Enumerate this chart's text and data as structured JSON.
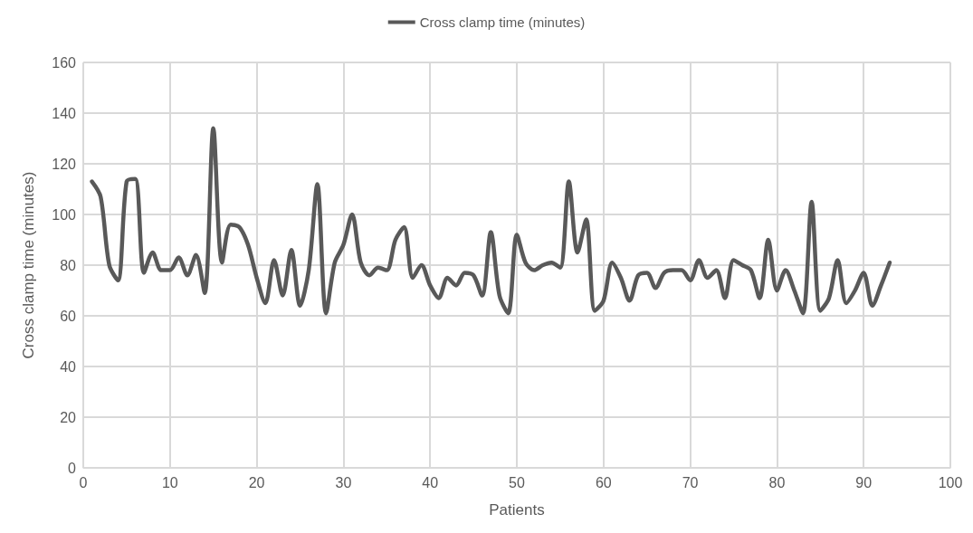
{
  "chart_data": {
    "type": "line",
    "xlabel": "Patients",
    "ylabel": "Cross clamp time (minutes)",
    "x": [
      1,
      2,
      3,
      4,
      5,
      6,
      7,
      8,
      9,
      10,
      11,
      12,
      13,
      14,
      15,
      16,
      17,
      18,
      19,
      20,
      21,
      22,
      23,
      24,
      25,
      26,
      27,
      28,
      29,
      30,
      31,
      32,
      33,
      34,
      35,
      36,
      37,
      38,
      39,
      40,
      41,
      42,
      43,
      44,
      45,
      46,
      47,
      48,
      49,
      50,
      51,
      52,
      53,
      54,
      55,
      56,
      57,
      58,
      59,
      60,
      61,
      62,
      63,
      64,
      65,
      66,
      67,
      68,
      69,
      70,
      71,
      72,
      73,
      74,
      75,
      76,
      77,
      78,
      79,
      80,
      81,
      82,
      83,
      84,
      85,
      86,
      87,
      88,
      89,
      90,
      91,
      92,
      93
    ],
    "series": [
      {
        "name": "Cross clamp time (minutes)",
        "color": "#595959",
        "values": [
          113,
          107,
          80,
          74,
          113,
          114,
          77,
          85,
          78,
          78,
          83,
          76,
          84,
          69,
          134,
          81,
          96,
          95,
          88,
          75,
          65,
          82,
          68,
          86,
          64,
          78,
          112,
          61,
          81,
          88,
          100,
          81,
          76,
          79,
          78,
          90,
          95,
          75,
          80,
          72,
          67,
          75,
          72,
          77,
          76,
          68,
          93,
          68,
          61,
          92,
          81,
          78,
          80,
          81,
          79,
          113,
          85,
          98,
          62,
          66,
          81,
          75,
          66,
          76,
          77,
          71,
          77,
          78,
          78,
          74,
          82,
          75,
          78,
          67,
          82,
          80,
          78,
          67,
          90,
          70,
          78,
          70,
          61,
          105,
          62,
          67,
          82,
          65,
          70,
          77,
          64,
          72,
          81
        ]
      }
    ],
    "xlim": [
      0,
      100
    ],
    "xticks": [
      0,
      10,
      20,
      30,
      40,
      50,
      60,
      70,
      80,
      90,
      100
    ],
    "ylim": [
      0,
      160
    ],
    "yticks": [
      0,
      20,
      40,
      60,
      80,
      100,
      120,
      140,
      160
    ],
    "grid": true,
    "legend": "top",
    "marker": "none",
    "line_style": "solid"
  }
}
